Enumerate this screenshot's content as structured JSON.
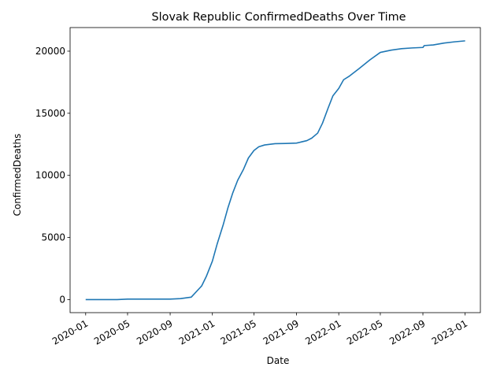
{
  "chart_data": {
    "type": "line",
    "title": "Slovak Republic  ConfirmedDeaths Over Time",
    "xlabel": "Date",
    "ylabel": "ConfirmedDeaths",
    "x_range": [
      "2019-11-17",
      "2023-02-14"
    ],
    "ylim": [
      -1050,
      21900
    ],
    "grid": false,
    "x_ticks": [
      "2020-01-01",
      "2020-05-01",
      "2020-09-01",
      "2021-01-01",
      "2021-05-01",
      "2021-09-01",
      "2022-01-01",
      "2022-05-01",
      "2022-09-01",
      "2023-01-01"
    ],
    "x_tick_labels": [
      "2020-01",
      "2020-05",
      "2020-09",
      "2021-01",
      "2021-05",
      "2021-09",
      "2022-01",
      "2022-05",
      "2022-09",
      "2023-01"
    ],
    "y_ticks": [
      0,
      5000,
      10000,
      15000,
      20000
    ],
    "y_tick_labels": [
      "0",
      "5000",
      "10000",
      "15000",
      "20000"
    ],
    "series": [
      {
        "name": "",
        "color": "#1f77b4",
        "x": [
          "2020-01-01",
          "2020-04-01",
          "2020-05-01",
          "2020-09-01",
          "2020-10-01",
          "2020-11-01",
          "2020-12-01",
          "2020-12-15",
          "2021-01-01",
          "2021-01-15",
          "2021-02-01",
          "2021-02-15",
          "2021-03-01",
          "2021-03-15",
          "2021-04-01",
          "2021-04-15",
          "2021-05-01",
          "2021-05-15",
          "2021-06-01",
          "2021-07-01",
          "2021-08-01",
          "2021-09-01",
          "2021-10-01",
          "2021-10-15",
          "2021-11-01",
          "2021-11-15",
          "2021-12-01",
          "2021-12-15",
          "2022-01-01",
          "2022-01-15",
          "2022-02-01",
          "2022-03-01",
          "2022-04-01",
          "2022-05-01",
          "2022-06-01",
          "2022-07-01",
          "2022-08-01",
          "2022-09-01",
          "2022-09-05",
          "2022-10-01",
          "2022-11-01",
          "2022-12-01",
          "2023-01-01"
        ],
        "y": [
          0,
          0,
          40,
          40,
          80,
          200,
          1100,
          1900,
          3100,
          4500,
          6000,
          7400,
          8600,
          9600,
          10500,
          11400,
          12000,
          12300,
          12450,
          12550,
          12570,
          12600,
          12800,
          13000,
          13400,
          14200,
          15400,
          16400,
          17000,
          17700,
          18000,
          18600,
          19300,
          19900,
          20080,
          20200,
          20260,
          20300,
          20450,
          20500,
          20650,
          20750,
          20830
        ]
      }
    ]
  }
}
